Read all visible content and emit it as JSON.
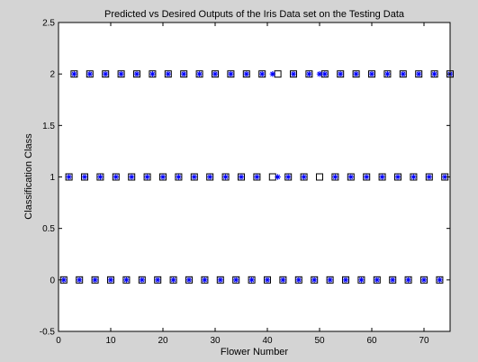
{
  "figure": {
    "background": "#d4d4d4",
    "axes_background": "#ffffff"
  },
  "chart_data": {
    "type": "scatter",
    "title": "Predicted vs Desired Outputs of the Iris Data set on the Testing Data",
    "xlabel": "Flower Number",
    "ylabel": "Classification Class",
    "xlim": [
      0,
      75
    ],
    "ylim": [
      -0.5,
      2.5
    ],
    "xticks": [
      "0",
      "10",
      "20",
      "30",
      "40",
      "50",
      "60",
      "70"
    ],
    "yticks": [
      "-0.5",
      "0",
      "0.5",
      "1",
      "1.5",
      "2",
      "2.5"
    ],
    "grid": false,
    "legend": "none",
    "series": [
      {
        "marker": "square",
        "color": "#000000",
        "points": [
          [
            1,
            0
          ],
          [
            2,
            1
          ],
          [
            3,
            2
          ],
          [
            4,
            0
          ],
          [
            5,
            1
          ],
          [
            6,
            2
          ],
          [
            7,
            0
          ],
          [
            8,
            1
          ],
          [
            9,
            2
          ],
          [
            10,
            0
          ],
          [
            11,
            1
          ],
          [
            12,
            2
          ],
          [
            13,
            0
          ],
          [
            14,
            1
          ],
          [
            15,
            2
          ],
          [
            16,
            0
          ],
          [
            17,
            1
          ],
          [
            18,
            2
          ],
          [
            19,
            0
          ],
          [
            20,
            1
          ],
          [
            21,
            2
          ],
          [
            22,
            0
          ],
          [
            23,
            1
          ],
          [
            24,
            2
          ],
          [
            25,
            0
          ],
          [
            26,
            1
          ],
          [
            27,
            2
          ],
          [
            28,
            0
          ],
          [
            29,
            1
          ],
          [
            30,
            2
          ],
          [
            31,
            0
          ],
          [
            32,
            1
          ],
          [
            33,
            2
          ],
          [
            34,
            0
          ],
          [
            35,
            1
          ],
          [
            36,
            2
          ],
          [
            37,
            0
          ],
          [
            38,
            1
          ],
          [
            39,
            2
          ],
          [
            40,
            0
          ],
          [
            41,
            1
          ],
          [
            42,
            2
          ],
          [
            43,
            0
          ],
          [
            44,
            1
          ],
          [
            45,
            2
          ],
          [
            46,
            0
          ],
          [
            47,
            1
          ],
          [
            48,
            2
          ],
          [
            49,
            0
          ],
          [
            50,
            1
          ],
          [
            51,
            2
          ],
          [
            52,
            0
          ],
          [
            53,
            1
          ],
          [
            54,
            2
          ],
          [
            55,
            0
          ],
          [
            56,
            1
          ],
          [
            57,
            2
          ],
          [
            58,
            0
          ],
          [
            59,
            1
          ],
          [
            60,
            2
          ],
          [
            61,
            0
          ],
          [
            62,
            1
          ],
          [
            63,
            2
          ],
          [
            64,
            0
          ],
          [
            65,
            1
          ],
          [
            66,
            2
          ],
          [
            67,
            0
          ],
          [
            68,
            1
          ],
          [
            69,
            2
          ],
          [
            70,
            0
          ],
          [
            71,
            1
          ],
          [
            72,
            2
          ],
          [
            73,
            0
          ],
          [
            74,
            1
          ],
          [
            75,
            2
          ]
        ]
      },
      {
        "marker": "asterisk",
        "color": "#0000ff",
        "points": [
          [
            1,
            0
          ],
          [
            2,
            1
          ],
          [
            3,
            2
          ],
          [
            4,
            0
          ],
          [
            5,
            1
          ],
          [
            6,
            2
          ],
          [
            7,
            0
          ],
          [
            8,
            1
          ],
          [
            9,
            2
          ],
          [
            10,
            0
          ],
          [
            11,
            1
          ],
          [
            12,
            2
          ],
          [
            13,
            0
          ],
          [
            14,
            1
          ],
          [
            15,
            2
          ],
          [
            16,
            0
          ],
          [
            17,
            1
          ],
          [
            18,
            2
          ],
          [
            19,
            0
          ],
          [
            20,
            1
          ],
          [
            21,
            2
          ],
          [
            22,
            0
          ],
          [
            23,
            1
          ],
          [
            24,
            2
          ],
          [
            25,
            0
          ],
          [
            26,
            1
          ],
          [
            27,
            2
          ],
          [
            28,
            0
          ],
          [
            29,
            1
          ],
          [
            30,
            2
          ],
          [
            31,
            0
          ],
          [
            32,
            1
          ],
          [
            33,
            2
          ],
          [
            34,
            0
          ],
          [
            35,
            1
          ],
          [
            36,
            2
          ],
          [
            37,
            0
          ],
          [
            38,
            1
          ],
          [
            39,
            2
          ],
          [
            40,
            0
          ],
          [
            41,
            2
          ],
          [
            42,
            1
          ],
          [
            43,
            0
          ],
          [
            44,
            1
          ],
          [
            45,
            2
          ],
          [
            46,
            0
          ],
          [
            47,
            1
          ],
          [
            48,
            2
          ],
          [
            49,
            0
          ],
          [
            50,
            2
          ],
          [
            51,
            2
          ],
          [
            52,
            0
          ],
          [
            53,
            1
          ],
          [
            54,
            2
          ],
          [
            55,
            0
          ],
          [
            56,
            1
          ],
          [
            57,
            2
          ],
          [
            58,
            0
          ],
          [
            59,
            1
          ],
          [
            60,
            2
          ],
          [
            61,
            0
          ],
          [
            62,
            1
          ],
          [
            63,
            2
          ],
          [
            64,
            0
          ],
          [
            65,
            1
          ],
          [
            66,
            2
          ],
          [
            67,
            0
          ],
          [
            68,
            1
          ],
          [
            69,
            2
          ],
          [
            70,
            0
          ],
          [
            71,
            1
          ],
          [
            72,
            2
          ],
          [
            73,
            0
          ],
          [
            74,
            1
          ],
          [
            75,
            2
          ]
        ]
      }
    ]
  }
}
